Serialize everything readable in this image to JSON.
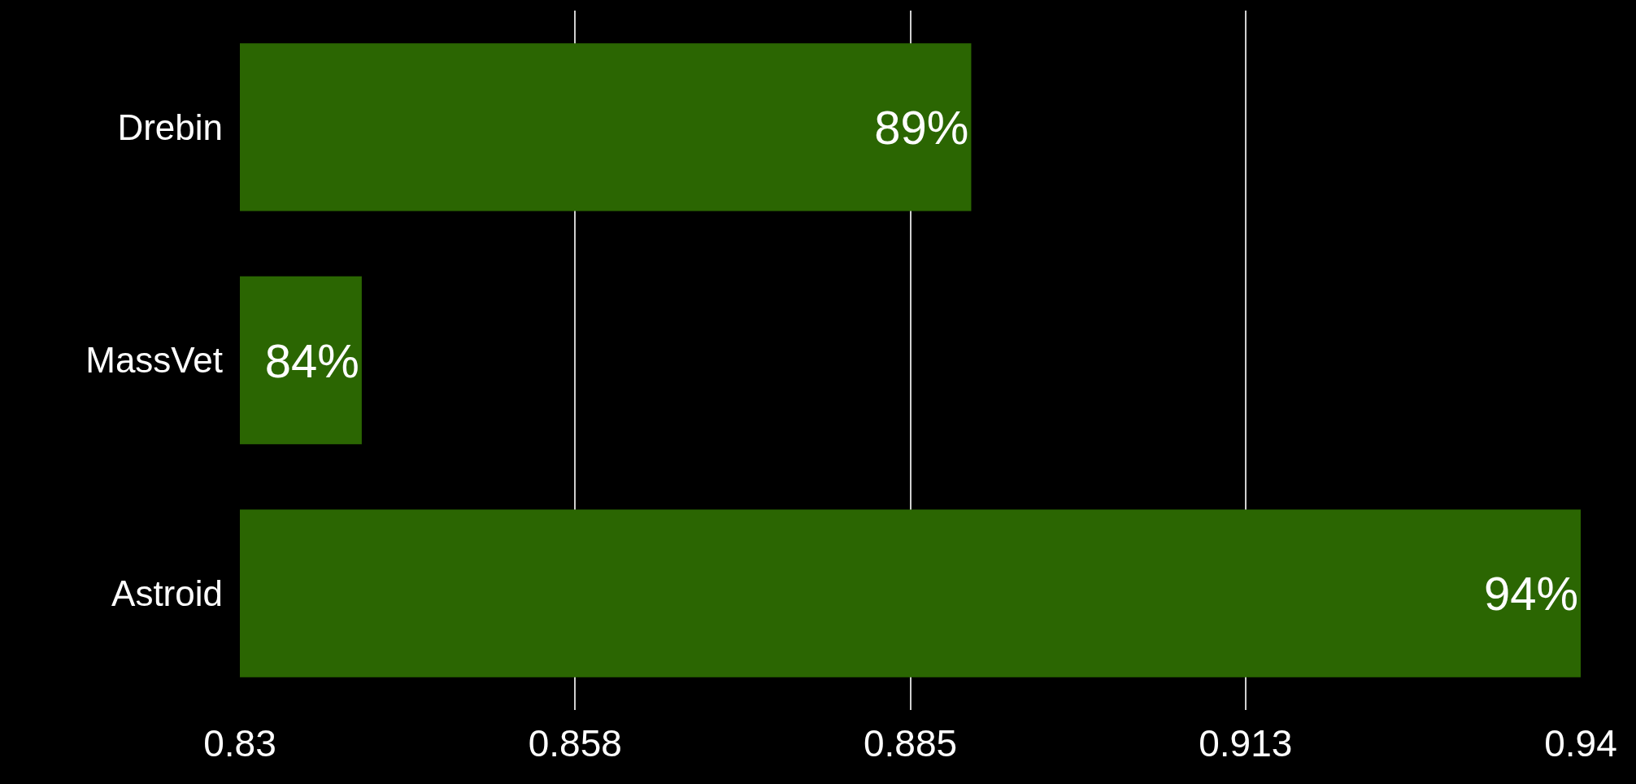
{
  "chart_data": {
    "type": "bar",
    "orientation": "horizontal",
    "categories": [
      "Drebin",
      "MassVet",
      "Astroid"
    ],
    "values": [
      0.89,
      0.84,
      0.94
    ],
    "value_labels": [
      "89%",
      "84%",
      "94%"
    ],
    "color": "#2b6602",
    "xlim": [
      0.83,
      0.94
    ],
    "xticks": [
      0.83,
      {
        "value": 0.8575,
        "label": "0.858"
      },
      0.885,
      {
        "value": 0.9125,
        "label": "0.913"
      },
      0.94
    ],
    "grid": "x"
  }
}
